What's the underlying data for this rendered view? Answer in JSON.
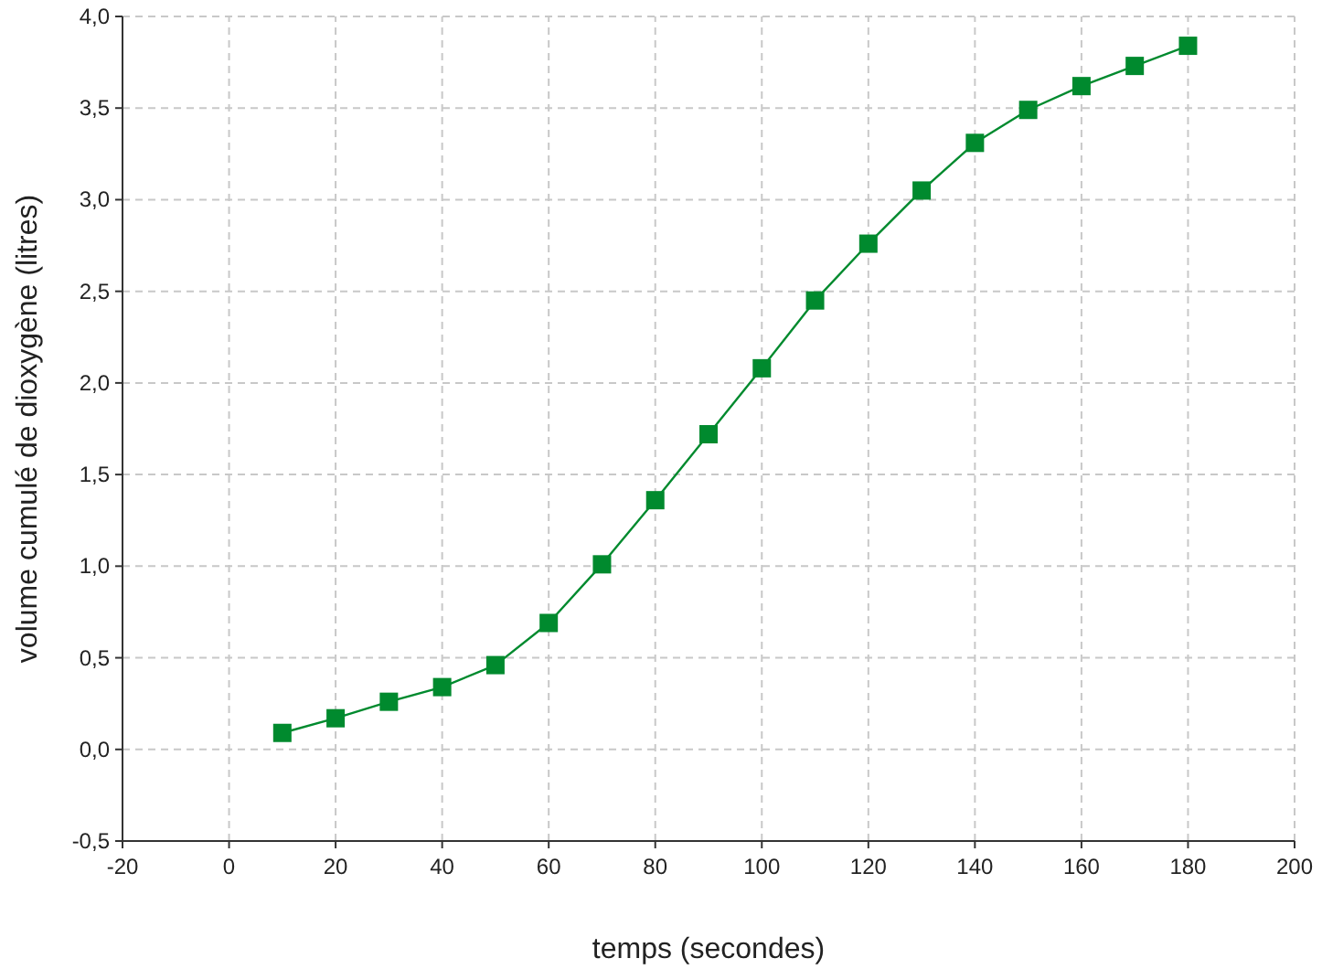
{
  "chart_data": {
    "type": "line",
    "xlabel": "temps (secondes)",
    "ylabel": "volume cumulé de dioxygène (litres)",
    "x": [
      10,
      20,
      30,
      40,
      50,
      60,
      70,
      80,
      90,
      100,
      110,
      120,
      130,
      140,
      150,
      160,
      170,
      180
    ],
    "series": [
      {
        "color": "#008a2e",
        "values": [
          0.09,
          0.17,
          0.26,
          0.34,
          0.46,
          0.69,
          1.01,
          1.36,
          1.72,
          2.08,
          2.45,
          2.76,
          3.05,
          3.31,
          3.49,
          3.62,
          3.73,
          3.84
        ]
      }
    ],
    "xlim": [
      -20,
      200
    ],
    "xticks": [
      -20,
      0,
      20,
      40,
      60,
      80,
      100,
      120,
      140,
      160,
      180,
      200
    ],
    "ylim": [
      -0.5,
      4
    ],
    "yticks": [
      {
        "value": -0.5,
        "label": "-0,5"
      },
      {
        "value": 0,
        "label": "0,0"
      },
      {
        "value": 0.5,
        "label": "0,5"
      },
      {
        "value": 1,
        "label": "1,0"
      },
      {
        "value": 1.5,
        "label": "1,5"
      },
      {
        "value": 2,
        "label": "2,0"
      },
      {
        "value": 2.5,
        "label": "2,5"
      },
      {
        "value": 3,
        "label": "3,0"
      },
      {
        "value": 3.5,
        "label": "3,5"
      },
      {
        "value": 4,
        "label": "4,0"
      }
    ],
    "grid": true,
    "marker": "square",
    "line_style": "solid"
  }
}
